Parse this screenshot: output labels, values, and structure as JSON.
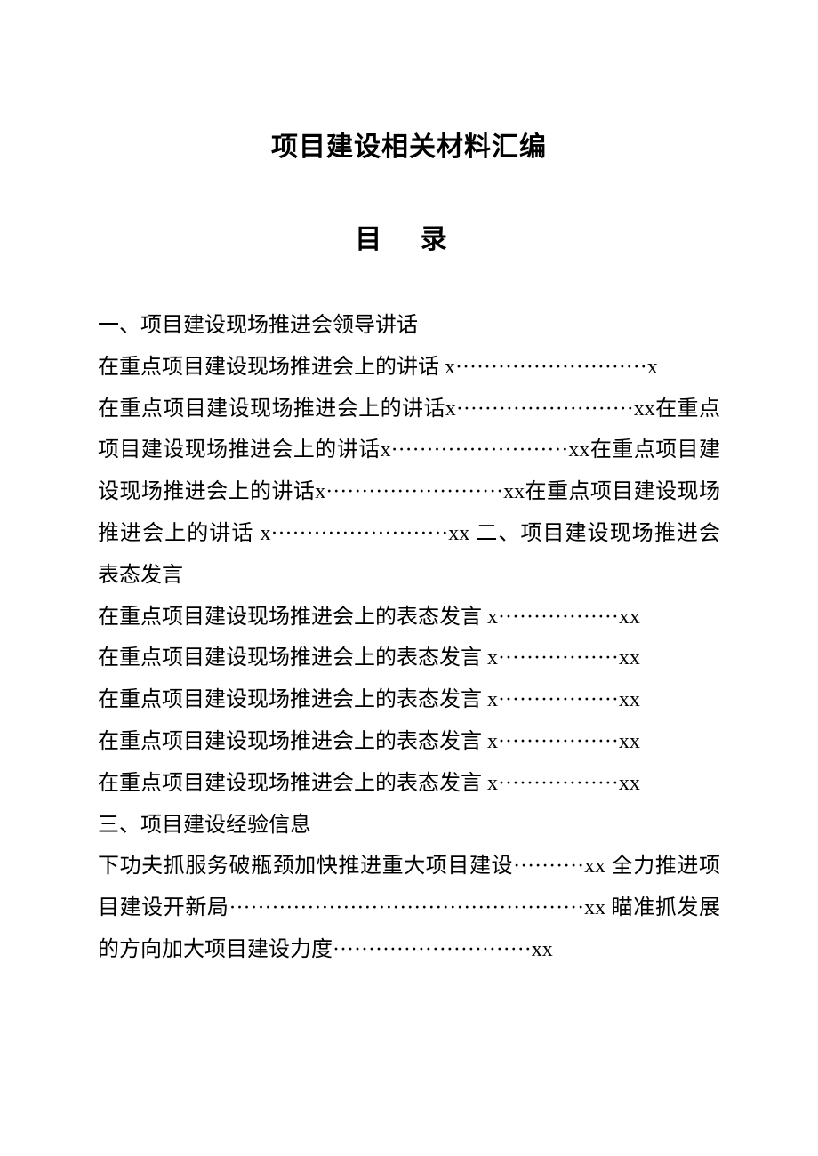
{
  "title": "项目建设相关材料汇编",
  "toc_label": "目 录",
  "section1": {
    "heading": "一、项目建设现场推进会领导讲话",
    "entries": [
      "在重点项目建设现场推进会上的讲话 x···························x",
      "在重点项目建设现场推进会上的讲话x·························xx在重点项目建设现场推进会上的讲话x·························xx在重点项目建设现场推进会上的讲话x·························xx在重点项目建设现场推进会上的讲话 x·························xx 二、项目建设现场推进会表态发言"
    ]
  },
  "section2": {
    "entries": [
      "在重点项目建设现场推进会上的表态发言 x·················xx",
      "在重点项目建设现场推进会上的表态发言 x·················xx",
      "在重点项目建设现场推进会上的表态发言 x·················xx",
      "在重点项目建设现场推进会上的表态发言 x·················xx",
      "在重点项目建设现场推进会上的表态发言 x·················xx"
    ]
  },
  "section3": {
    "heading": "三、项目建设经验信息",
    "entries": [
      "下功夫抓服务破瓶颈加快推进重大项目建设··········xx 全力推进项目建设开新局··················································xx 瞄准抓发展的方向加大项目建设力度····························xx"
    ]
  }
}
